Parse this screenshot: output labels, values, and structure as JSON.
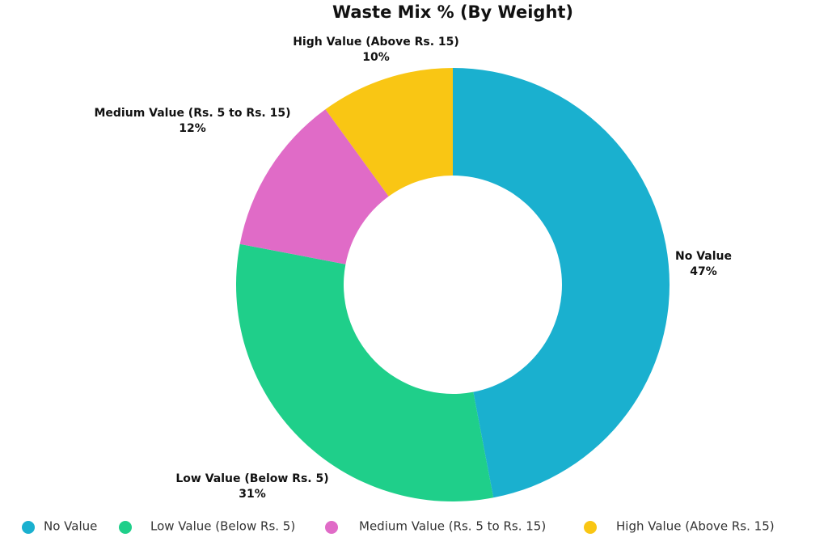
{
  "chart_data": {
    "type": "donut",
    "title": "Waste Mix % (By Weight)",
    "categories": [
      "No Value",
      "Low Value (Below Rs. 5)",
      "Medium Value (Rs. 5 to Rs. 15)",
      "High Value (Above Rs. 15)"
    ],
    "values": [
      47,
      31,
      12,
      10
    ],
    "value_labels": [
      "47%",
      "31%",
      "12%",
      "10%"
    ],
    "colors": [
      "#1ab0cf",
      "#1fcf8a",
      "#e06bc7",
      "#f9c614"
    ]
  }
}
